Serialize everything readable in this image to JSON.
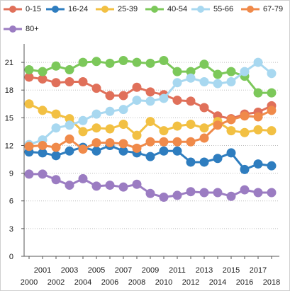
{
  "chart_data": {
    "type": "line",
    "title": "",
    "xlabel": "",
    "ylabel": "",
    "x": [
      "2000",
      "2001",
      "2002",
      "2003",
      "2004",
      "2005",
      "2006",
      "2007",
      "2008",
      "2009",
      "2010",
      "2011",
      "2012",
      "2013",
      "2014",
      "2015",
      "2016",
      "2017",
      "2018"
    ],
    "ylim": [
      0,
      23
    ],
    "yticks": [
      0,
      3,
      6,
      9,
      12,
      15,
      18,
      21
    ],
    "grid": "horizontal dotted",
    "legend_position": "top",
    "series": [
      {
        "name": "0-15",
        "color": "#e0705a",
        "values": [
          19.4,
          19.2,
          18.8,
          18.9,
          18.9,
          18.2,
          17.4,
          17.4,
          18.3,
          17.8,
          17.5,
          16.9,
          16.8,
          16.1,
          15.2,
          14.9,
          15.4,
          15.6,
          16.3
        ]
      },
      {
        "name": "16-24",
        "color": "#2e7dbf",
        "values": [
          11.3,
          11.2,
          10.9,
          11.4,
          11.8,
          11.4,
          12.0,
          11.4,
          11.2,
          10.8,
          11.4,
          11.4,
          10.2,
          10.2,
          10.6,
          11.2,
          9.4,
          10.0,
          9.8
        ]
      },
      {
        "name": "25-39",
        "color": "#f2c043",
        "values": [
          16.5,
          15.8,
          15.4,
          14.9,
          13.5,
          13.9,
          13.8,
          14.3,
          13.1,
          14.6,
          13.6,
          14.1,
          14.3,
          13.9,
          14.6,
          13.6,
          13.4,
          13.7,
          13.6
        ]
      },
      {
        "name": "40-54",
        "color": "#7cc85a",
        "values": [
          20.2,
          20.0,
          20.6,
          20.2,
          21.0,
          21.1,
          20.9,
          21.2,
          21.0,
          20.9,
          21.2,
          20.0,
          20.0,
          20.8,
          19.7,
          20.0,
          19.5,
          17.7,
          17.7
        ]
      },
      {
        "name": "55-66",
        "color": "#a8d8f0",
        "values": [
          12.1,
          12.6,
          13.9,
          14.2,
          14.7,
          15.4,
          15.7,
          15.9,
          16.9,
          16.8,
          17.1,
          18.8,
          19.3,
          18.9,
          18.7,
          18.9,
          20.0,
          21.0,
          19.8
        ]
      },
      {
        "name": "67-79",
        "color": "#f08a4a",
        "values": [
          11.9,
          12.0,
          11.8,
          12.7,
          11.6,
          12.3,
          12.3,
          12.2,
          11.7,
          12.4,
          12.4,
          12.4,
          12.4,
          12.8,
          14.2,
          14.8,
          15.2,
          15.1,
          15.8
        ]
      },
      {
        "name": "80+",
        "color": "#9b7cc2",
        "values": [
          8.9,
          8.9,
          8.3,
          7.7,
          8.4,
          7.6,
          7.7,
          7.5,
          7.8,
          6.8,
          6.4,
          6.6,
          7.0,
          6.9,
          6.9,
          6.5,
          7.2,
          6.9,
          6.9
        ]
      }
    ]
  }
}
